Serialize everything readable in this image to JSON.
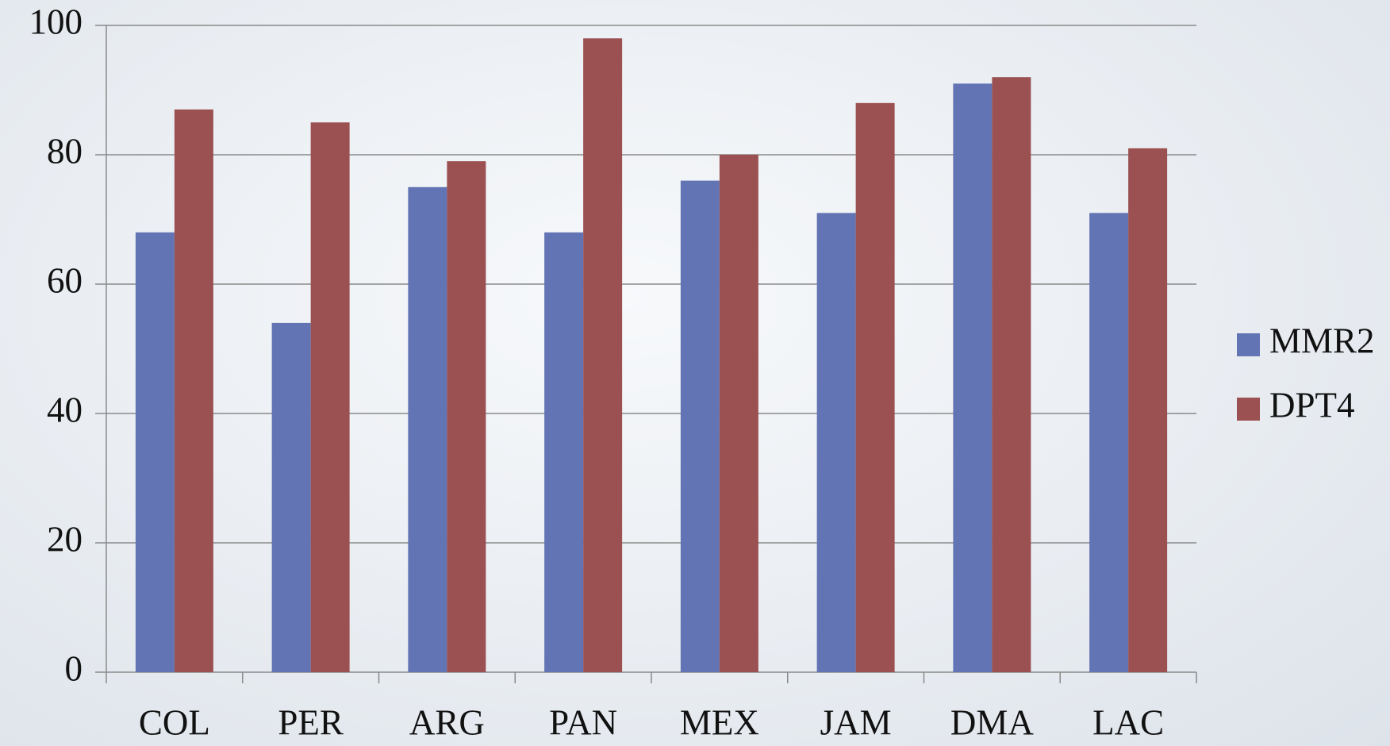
{
  "chart_data": {
    "type": "bar",
    "categories": [
      "COL",
      "PER",
      "ARG",
      "PAN",
      "MEX",
      "JAM",
      "DMA",
      "LAC"
    ],
    "series": [
      {
        "name": "MMR2",
        "color": "#6274b3",
        "values": [
          68,
          54,
          75,
          68,
          76,
          71,
          91,
          71
        ]
      },
      {
        "name": "DPT4",
        "color": "#9b5151",
        "values": [
          87,
          85,
          79,
          98,
          80,
          88,
          92,
          81
        ]
      }
    ],
    "ylim": [
      0,
      100
    ],
    "yticks": [
      0,
      20,
      40,
      60,
      80,
      100
    ],
    "grid": true,
    "legend": "right"
  }
}
